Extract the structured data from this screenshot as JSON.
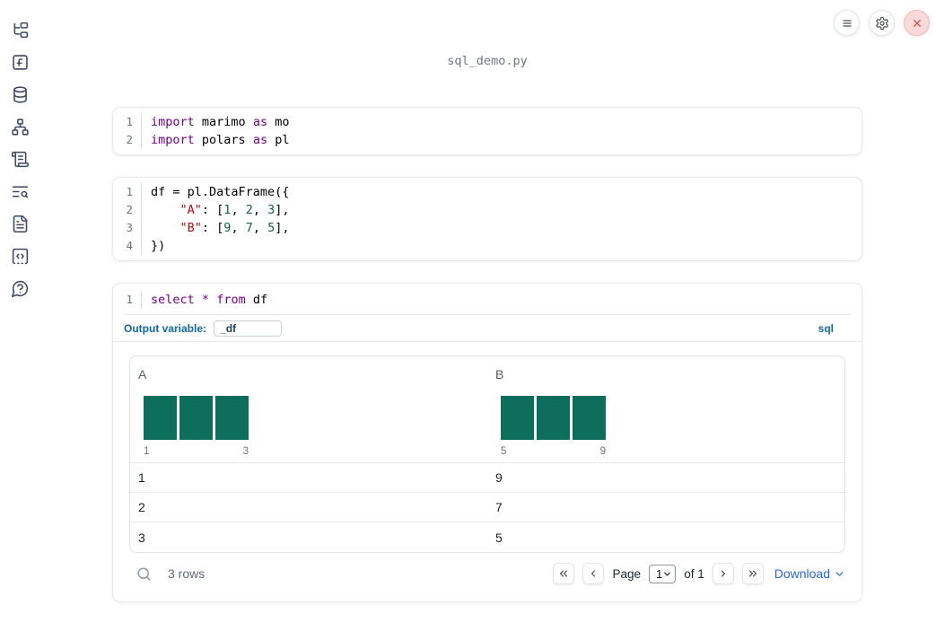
{
  "window": {
    "title": "sql_demo.py"
  },
  "colors": {
    "accent_blue": "#11689f",
    "link_blue": "#2566d8",
    "histogram_bar_teal": "#0e6e5c",
    "close_red": "#c9483f",
    "syntax_keyword": "#770088",
    "syntax_string": "#aa1111",
    "syntax_number": "#116644",
    "syntax_plain": "#000000"
  },
  "toolbar": {
    "buttons": [
      {
        "name": "menu",
        "icon": "menu"
      },
      {
        "name": "settings",
        "icon": "gear"
      },
      {
        "name": "shutdown",
        "icon": "close"
      }
    ]
  },
  "sidebar": {
    "items": [
      {
        "name": "file-explorer",
        "icon": "file-tree"
      },
      {
        "name": "variables",
        "icon": "function-square"
      },
      {
        "name": "datasources",
        "icon": "database"
      },
      {
        "name": "dependencies",
        "icon": "network"
      },
      {
        "name": "scratchpad",
        "icon": "scroll"
      },
      {
        "name": "logs",
        "icon": "text-search"
      },
      {
        "name": "documentation",
        "icon": "file-text"
      },
      {
        "name": "snippets",
        "icon": "code-square"
      },
      {
        "name": "chat",
        "icon": "help-bubble"
      }
    ]
  },
  "cells": [
    {
      "type": "python",
      "lines": [
        {
          "num": "1",
          "fold": false,
          "tokens": [
            [
              "kw",
              "import"
            ],
            [
              "pl",
              " marimo "
            ],
            [
              "kw",
              "as"
            ],
            [
              "pl",
              " mo"
            ]
          ]
        },
        {
          "num": "2",
          "fold": false,
          "tokens": [
            [
              "kw",
              "import"
            ],
            [
              "pl",
              " polars "
            ],
            [
              "kw",
              "as"
            ],
            [
              "pl",
              " pl"
            ]
          ]
        }
      ]
    },
    {
      "type": "python",
      "lines": [
        {
          "num": "1",
          "fold": true,
          "tokens": [
            [
              "pl",
              "df = pl.DataFrame({"
            ]
          ]
        },
        {
          "num": "2",
          "fold": false,
          "tokens": [
            [
              "pl",
              "    "
            ],
            [
              "str",
              "\"A\""
            ],
            [
              "pl",
              ": ["
            ],
            [
              "num",
              "1"
            ],
            [
              "pl",
              ", "
            ],
            [
              "num",
              "2"
            ],
            [
              "pl",
              ", "
            ],
            [
              "num",
              "3"
            ],
            [
              "pl",
              "],"
            ]
          ]
        },
        {
          "num": "3",
          "fold": false,
          "tokens": [
            [
              "pl",
              "    "
            ],
            [
              "str",
              "\"B\""
            ],
            [
              "pl",
              ": ["
            ],
            [
              "num",
              "9"
            ],
            [
              "pl",
              ", "
            ],
            [
              "num",
              "7"
            ],
            [
              "pl",
              ", "
            ],
            [
              "num",
              "5"
            ],
            [
              "pl",
              "],"
            ]
          ]
        },
        {
          "num": "4",
          "fold": false,
          "tokens": [
            [
              "pl",
              "})"
            ]
          ]
        }
      ]
    },
    {
      "type": "sql",
      "has_output": true,
      "lines": [
        {
          "num": "1",
          "fold": false,
          "tokens": [
            [
              "kw",
              "select"
            ],
            [
              "pl",
              " "
            ],
            [
              "kw",
              "*"
            ],
            [
              "pl",
              " "
            ],
            [
              "kw",
              "from"
            ],
            [
              "pl",
              " df"
            ]
          ]
        }
      ],
      "footer": {
        "output_variable_label": "Output variable:",
        "output_variable_value": "_df",
        "language_badge": "sql"
      }
    }
  ],
  "table": {
    "columns": [
      {
        "name": "A",
        "histogram": {
          "bar_heights": [
            1,
            1,
            1
          ],
          "min_label": "1",
          "max_label": "3"
        }
      },
      {
        "name": "B",
        "histogram": {
          "bar_heights": [
            1,
            1,
            1
          ],
          "min_label": "5",
          "max_label": "9"
        }
      }
    ],
    "rows": [
      [
        "1",
        "9"
      ],
      [
        "2",
        "7"
      ],
      [
        "3",
        "5"
      ]
    ],
    "footer": {
      "row_count": "3 rows",
      "page_label": "Page",
      "page_value": "1",
      "of_label": "of 1",
      "download_label": "Download"
    }
  }
}
